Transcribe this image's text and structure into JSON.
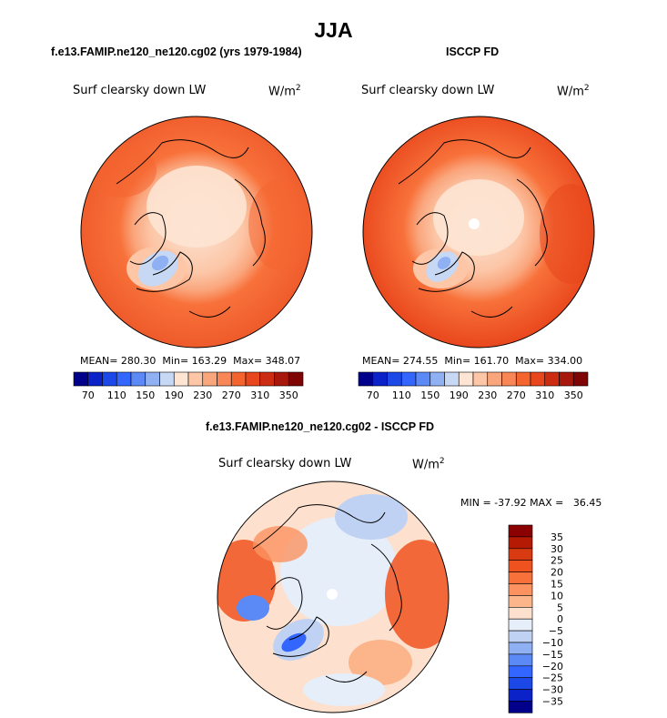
{
  "main_title": "JJA",
  "panels": [
    {
      "id": "model",
      "title": "f.e13.FAMIP.ne120_ne120.cg02 (yrs 1979-1984)",
      "field_label": "Surf clearsky down LW",
      "units": "W/m",
      "units_sup": "2",
      "stats": {
        "mean_label": "MEAN=",
        "mean": "280.30",
        "min_label": "Min=",
        "min": "163.29",
        "max_label": "Max=",
        "max": "348.07"
      },
      "colorbar": {
        "colors": [
          "#01008b",
          "#0a22c8",
          "#1b48e6",
          "#3366ff",
          "#5b8af7",
          "#8fb0f2",
          "#c7d8f4",
          "#fde4d3",
          "#fcc6a7",
          "#faa67d",
          "#f88656",
          "#f4642f",
          "#e8461c",
          "#cc2d12",
          "#a7170b",
          "#7f0404"
        ],
        "tick_labels": [
          "70",
          "110",
          "150",
          "190",
          "230",
          "270",
          "310",
          "350"
        ]
      }
    },
    {
      "id": "obs",
      "title": "ISCCP FD",
      "field_label": "Surf clearsky down LW",
      "units": "W/m",
      "units_sup": "2",
      "stats": {
        "mean_label": "MEAN=",
        "mean": "274.55",
        "min_label": "Min=",
        "min": "161.70",
        "max_label": "Max=",
        "max": "334.00"
      },
      "colorbar": {
        "colors": [
          "#01008b",
          "#0a22c8",
          "#1b48e6",
          "#3366ff",
          "#5b8af7",
          "#8fb0f2",
          "#c7d8f4",
          "#fde4d3",
          "#fcc6a7",
          "#faa67d",
          "#f88656",
          "#f4642f",
          "#e8461c",
          "#cc2d12",
          "#a7170b",
          "#7f0404"
        ],
        "tick_labels": [
          "70",
          "110",
          "150",
          "190",
          "230",
          "270",
          "310",
          "350"
        ]
      }
    },
    {
      "id": "diff",
      "title": "f.e13.FAMIP.ne120_ne120.cg02 - ISCCP FD",
      "field_label": "Surf clearsky down LW",
      "units": "W/m",
      "units_sup": "2",
      "stats_text": "MIN = -37.92 MAX =   36.45",
      "colorbar": {
        "colors": [
          "#8b0000",
          "#b51a04",
          "#d83a12",
          "#f0521f",
          "#f8713a",
          "#fb9260",
          "#fcb48a",
          "#fde0cd",
          "#e6eef9",
          "#bfd2f3",
          "#8fb0f2",
          "#5b8af7",
          "#3366ff",
          "#1b48e6",
          "#0a22c8",
          "#01008b"
        ],
        "tick_labels": [
          "35",
          "30",
          "25",
          "20",
          "15",
          "10",
          "5",
          "0",
          "−5",
          "−10",
          "−15",
          "−20",
          "−25",
          "−30",
          "−35"
        ]
      }
    }
  ],
  "chart_data": [
    {
      "type": "heatmap",
      "projection": "north-polar-stereographic",
      "title": "f.e13.FAMIP.ne120_ne120.cg02 (yrs 1979-1984)",
      "variable": "Surf clearsky down LW",
      "units": "W/m2",
      "season": "JJA",
      "mean": 280.3,
      "min": 163.29,
      "max": 348.07,
      "levels": [
        70,
        90,
        110,
        130,
        150,
        170,
        190,
        210,
        230,
        250,
        270,
        290,
        310,
        330,
        350
      ],
      "tick_labels": [
        "70",
        "110",
        "150",
        "190",
        "230",
        "270",
        "310",
        "350"
      ]
    },
    {
      "type": "heatmap",
      "projection": "north-polar-stereographic",
      "title": "ISCCP FD",
      "variable": "Surf clearsky down LW",
      "units": "W/m2",
      "season": "JJA",
      "mean": 274.55,
      "min": 161.7,
      "max": 334.0,
      "levels": [
        70,
        90,
        110,
        130,
        150,
        170,
        190,
        210,
        230,
        250,
        270,
        290,
        310,
        330,
        350
      ],
      "tick_labels": [
        "70",
        "110",
        "150",
        "190",
        "230",
        "270",
        "310",
        "350"
      ]
    },
    {
      "type": "heatmap",
      "projection": "north-polar-stereographic",
      "title": "f.e13.FAMIP.ne120_ne120.cg02 - ISCCP FD",
      "variable": "Surf clearsky down LW",
      "units": "W/m2",
      "season": "JJA",
      "min": -37.92,
      "max": 36.45,
      "levels": [
        -35,
        -30,
        -25,
        -20,
        -15,
        -10,
        -5,
        0,
        5,
        10,
        15,
        20,
        25,
        30,
        35
      ]
    }
  ]
}
